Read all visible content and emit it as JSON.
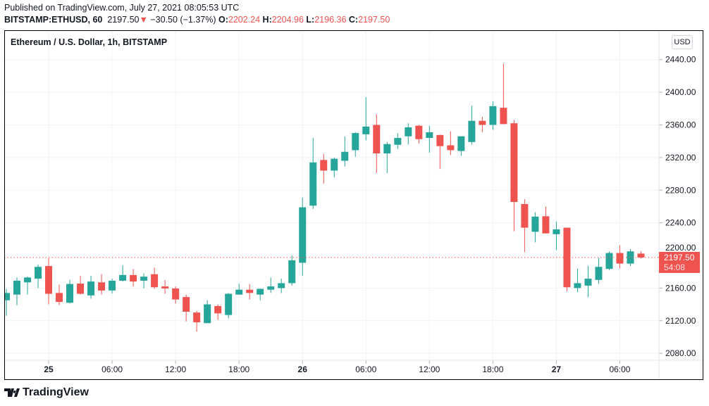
{
  "header": {
    "published": "Published on TradingView.com, July 27, 2021 08:05:53 UTC",
    "symbol": "BITSTAMP:ETHUSD, 60",
    "last": "2197.50",
    "change": "−30.50 (−1.37%)",
    "o_label": "O:",
    "o": "2202.24",
    "h_label": "H:",
    "h": "2204.96",
    "l_label": "L:",
    "l": "2196.36",
    "c_label": "C:",
    "c": "2197.50"
  },
  "chart_title": "Ethereum / U.S. Dollar, 1h, BITSTAMP",
  "currency_button": "USD",
  "price_label": {
    "price": "2197.50",
    "countdown": "54:08"
  },
  "logo_text": "TradingView",
  "colors": {
    "up": "#26a69a",
    "down": "#ef5350",
    "grid": "#f0f3fa"
  },
  "chart_data": {
    "type": "candlestick",
    "title": "Ethereum / U.S. Dollar, 1h, BITSTAMP",
    "ylim": [
      2071.5,
      2476
    ],
    "yticks": [
      2080,
      2120,
      2160,
      2200,
      2240,
      2280,
      2320,
      2360,
      2400,
      2440
    ],
    "ytick_labels": [
      "2080.00",
      "2120.00",
      "2160.00",
      "2200.00",
      "2240.00",
      "2280.00",
      "2320.00",
      "2360.00",
      "2400.00",
      "2440.00"
    ],
    "xlim_hours": [
      -4.2,
      57.7
    ],
    "xticks": [
      {
        "hour": 0,
        "label": "25",
        "bold": true
      },
      {
        "hour": 6,
        "label": "06:00"
      },
      {
        "hour": 12,
        "label": "12:00"
      },
      {
        "hour": 18,
        "label": "18:00"
      },
      {
        "hour": 24,
        "label": "26",
        "bold": true
      },
      {
        "hour": 30,
        "label": "06:00"
      },
      {
        "hour": 36,
        "label": "12:00"
      },
      {
        "hour": 42,
        "label": "18:00"
      },
      {
        "hour": 48,
        "label": "27",
        "bold": true
      },
      {
        "hour": 54,
        "label": "06:00"
      }
    ],
    "last_price": 2197.5,
    "grid": true,
    "candles_start_hour": -4,
    "ohlc": [
      [
        2145,
        2159,
        2126,
        2154
      ],
      [
        2152,
        2173,
        2139,
        2169
      ],
      [
        2167,
        2174,
        2152,
        2173
      ],
      [
        2171.5,
        2189,
        2160,
        2186
      ],
      [
        2187,
        2197,
        2140,
        2153
      ],
      [
        2154,
        2164,
        2139,
        2143
      ],
      [
        2142,
        2170,
        2141,
        2165
      ],
      [
        2165.5,
        2175,
        2152,
        2153
      ],
      [
        2151,
        2175,
        2147,
        2168
      ],
      [
        2167,
        2177,
        2152,
        2157
      ],
      [
        2157,
        2171.5,
        2153.5,
        2169
      ],
      [
        2169,
        2188,
        2168,
        2176
      ],
      [
        2176,
        2183.5,
        2162,
        2168
      ],
      [
        2169,
        2178,
        2159.5,
        2174
      ],
      [
        2177,
        2185,
        2159,
        2161
      ],
      [
        2162,
        2170,
        2153,
        2159.5
      ],
      [
        2159.5,
        2162,
        2141,
        2146
      ],
      [
        2149,
        2152,
        2119,
        2131
      ],
      [
        2130,
        2132,
        2106.5,
        2118
      ],
      [
        2117,
        2145,
        2117,
        2140
      ],
      [
        2138,
        2140,
        2121,
        2129
      ],
      [
        2127,
        2154,
        2123,
        2153
      ],
      [
        2152,
        2165.5,
        2152,
        2158
      ],
      [
        2158,
        2165,
        2146,
        2154
      ],
      [
        2152,
        2159.5,
        2145,
        2159
      ],
      [
        2158,
        2173,
        2154,
        2162
      ],
      [
        2160,
        2171.5,
        2154,
        2166
      ],
      [
        2166,
        2200,
        2163,
        2194
      ],
      [
        2191,
        2271,
        2175,
        2259
      ],
      [
        2261,
        2344,
        2257,
        2314
      ],
      [
        2317,
        2324.5,
        2288,
        2304
      ],
      [
        2304,
        2320,
        2295.5,
        2318.5
      ],
      [
        2316,
        2346,
        2309,
        2327
      ],
      [
        2329,
        2351,
        2321,
        2350
      ],
      [
        2348.5,
        2394,
        2341,
        2358
      ],
      [
        2360,
        2373,
        2301,
        2325
      ],
      [
        2325,
        2339,
        2301,
        2336.5
      ],
      [
        2335.6,
        2350,
        2330.5,
        2344
      ],
      [
        2346,
        2362,
        2336,
        2357
      ],
      [
        2359,
        2360,
        2337,
        2342.5
      ],
      [
        2344,
        2359,
        2326,
        2351
      ],
      [
        2347.6,
        2348,
        2306,
        2334
      ],
      [
        2335,
        2352,
        2323,
        2329
      ],
      [
        2328,
        2346,
        2322,
        2346
      ],
      [
        2339,
        2383.5,
        2336,
        2365
      ],
      [
        2365,
        2370,
        2351,
        2360
      ],
      [
        2360,
        2389,
        2354,
        2383
      ],
      [
        2381,
        2435,
        2361,
        2361
      ],
      [
        2362,
        2366,
        2229.6,
        2265.5
      ],
      [
        2263,
        2269,
        2204,
        2234
      ],
      [
        2229,
        2253,
        2216,
        2247.6
      ],
      [
        2248,
        2260,
        2227,
        2227
      ],
      [
        2226,
        2241.6,
        2206.5,
        2232
      ],
      [
        2234,
        2234,
        2156,
        2161
      ],
      [
        2160,
        2184,
        2155,
        2166
      ],
      [
        2163,
        2187,
        2149,
        2171.5
      ],
      [
        2170,
        2197,
        2165.5,
        2186
      ],
      [
        2183.5,
        2205,
        2182,
        2203
      ],
      [
        2203,
        2212.5,
        2184,
        2190
      ],
      [
        2190,
        2208,
        2187,
        2205
      ],
      [
        2202.24,
        2204.96,
        2196.36,
        2197.5
      ]
    ]
  }
}
